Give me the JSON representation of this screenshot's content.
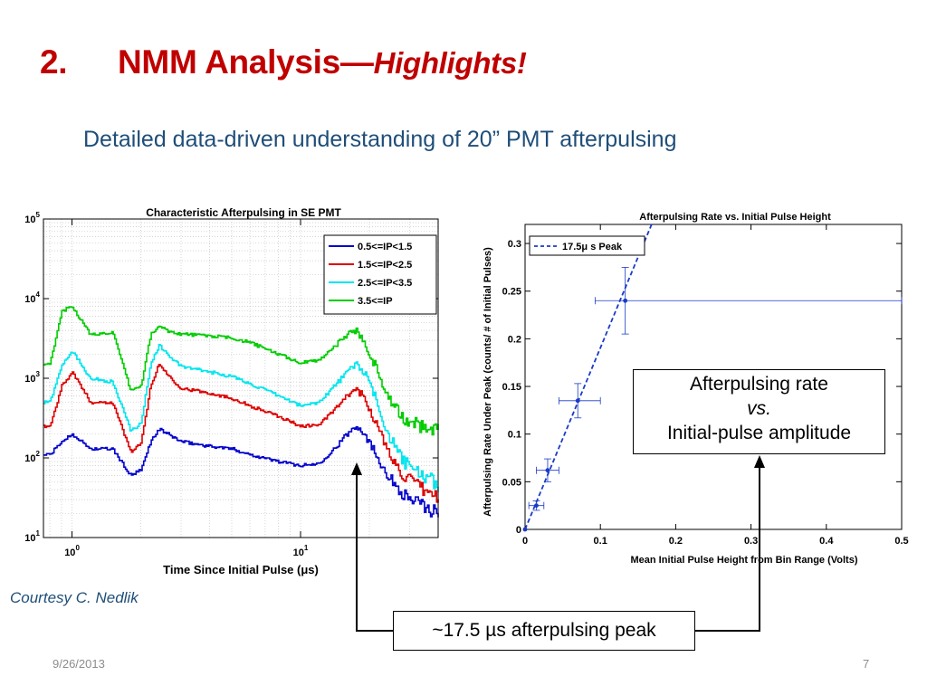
{
  "slide": {
    "title_number": "2.",
    "title_main": "NMM Analysis—",
    "title_highlight": "Highlights!",
    "subtitle": "Detailed data-driven understanding of 20” PMT afterpulsing",
    "courtesy": "Courtesy C. Nedlik",
    "date": "9/26/2013",
    "page_number": "7",
    "colors": {
      "title": "#c00000",
      "subtitle": "#1f4e79",
      "footer": "#8c8c8c"
    }
  },
  "callouts": {
    "rate_line1": "Afterpulsing rate",
    "rate_line2": "vs.",
    "rate_line3": "Initial-pulse amplitude",
    "peak_text": "~17.5 µs afterpulsing peak"
  },
  "chart_data": [
    {
      "type": "line",
      "title": "Characteristic Afterpulsing in SE PMT",
      "xlabel": "Time Since Initial Pulse (μs)",
      "ylabel": "",
      "xscale": "log",
      "yscale": "log",
      "xlim": [
        0.75,
        40
      ],
      "ylim": [
        10,
        100000
      ],
      "x_tick_labels": [
        "10^0",
        "10^1"
      ],
      "y_tick_labels": [
        "10^1",
        "10^2",
        "10^3",
        "10^4",
        "10^5"
      ],
      "grid": true,
      "legend_position": "top-right",
      "x": [
        0.8,
        0.9,
        1.0,
        1.2,
        1.5,
        1.8,
        2.0,
        2.2,
        2.4,
        2.7,
        3.0,
        4.0,
        5.0,
        6.0,
        8.0,
        10.0,
        12.0,
        14.0,
        16.0,
        17.5,
        19.0,
        21.0,
        24.0,
        28.0,
        34.0,
        40.0
      ],
      "series": [
        {
          "name": "0.5<=IP<1.5",
          "color": "#0000cc",
          "values": [
            110,
            160,
            200,
            130,
            130,
            60,
            70,
            160,
            230,
            190,
            160,
            140,
            130,
            110,
            90,
            80,
            85,
            130,
            200,
            260,
            200,
            120,
            60,
            35,
            25,
            20
          ]
        },
        {
          "name": "1.5<=IP<2.5",
          "color": "#dd0000",
          "values": [
            250,
            800,
            1200,
            500,
            500,
            120,
            150,
            800,
            1500,
            1000,
            750,
            650,
            560,
            450,
            330,
            250,
            260,
            400,
            600,
            750,
            550,
            300,
            120,
            60,
            40,
            32
          ]
        },
        {
          "name": "2.5<=IP<3.5",
          "color": "#00e5ee",
          "values": [
            500,
            1500,
            2200,
            1000,
            900,
            220,
            270,
            1500,
            2600,
            1800,
            1400,
            1200,
            1050,
            850,
            600,
            450,
            500,
            800,
            1200,
            1550,
            1150,
            600,
            200,
            90,
            60,
            45
          ]
        },
        {
          "name": "3.5<=IP",
          "color": "#00cc00",
          "values": [
            1500,
            7000,
            8000,
            3500,
            3800,
            700,
            800,
            3500,
            4500,
            3800,
            3600,
            3400,
            3200,
            2800,
            2000,
            1550,
            1700,
            2500,
            3600,
            4000,
            2800,
            1500,
            600,
            300,
            250,
            220
          ]
        }
      ]
    },
    {
      "type": "scatter",
      "title": "Afterpulsing Rate vs. Initial Pulse Height",
      "xlabel": "Mean Initial Pulse Height from Bin Range (Volts)",
      "ylabel": "Afterpulsing Rate Under Peak (counts/ # of Initial Pulses)",
      "xlim": [
        0,
        0.5
      ],
      "ylim": [
        0,
        0.32
      ],
      "x_ticks": [
        0,
        0.1,
        0.2,
        0.3,
        0.4,
        0.5
      ],
      "y_ticks": [
        0,
        0.05,
        0.1,
        0.15,
        0.2,
        0.25,
        0.3
      ],
      "grid": false,
      "legend_position": "top-left",
      "series": [
        {
          "name": "17.5μ s Peak",
          "color": "#1a3ac8",
          "x": [
            0.0,
            0.015,
            0.03,
            0.07,
            0.133
          ],
          "y": [
            0.0,
            0.025,
            0.062,
            0.135,
            0.24
          ],
          "x_err": [
            0.0,
            0.01,
            0.015,
            0.025,
            0.04
          ],
          "x_err_right": [
            0.0,
            0.01,
            0.015,
            0.03,
            0.367
          ],
          "y_err": [
            0.0,
            0.005,
            0.012,
            0.018,
            0.035
          ]
        }
      ],
      "fit_line": {
        "x": [
          0.0,
          0.168
        ],
        "y": [
          0.0,
          0.32
        ],
        "style": "dashed"
      }
    }
  ]
}
